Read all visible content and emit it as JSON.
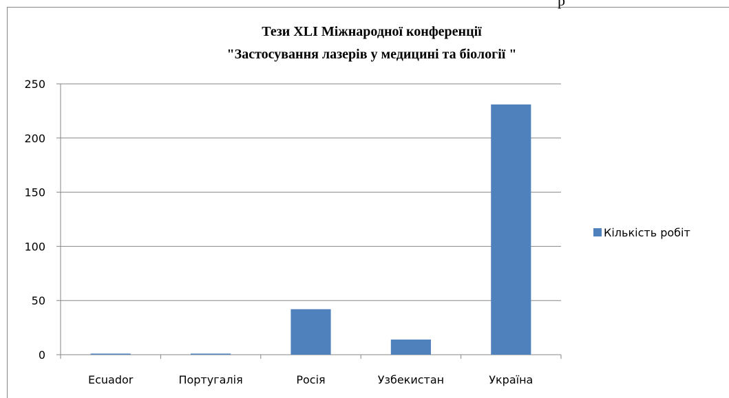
{
  "page_text": "р",
  "chart_data": {
    "type": "bar",
    "title": [
      "Тези XLI Міжнародної конференції",
      "\"Застосування лазерів у медицині та біології \""
    ],
    "categories": [
      "Ecuador",
      "Португалія",
      "Росія",
      "Узбекистан",
      "Україна"
    ],
    "series": [
      {
        "name": "Кількість робіт",
        "color": "#4f81bd",
        "values": [
          1,
          1,
          42,
          14,
          231
        ]
      }
    ],
    "ylim": [
      0,
      250
    ],
    "yticks": [
      0,
      50,
      100,
      150,
      200,
      250
    ],
    "grid": true,
    "legend": "right"
  }
}
